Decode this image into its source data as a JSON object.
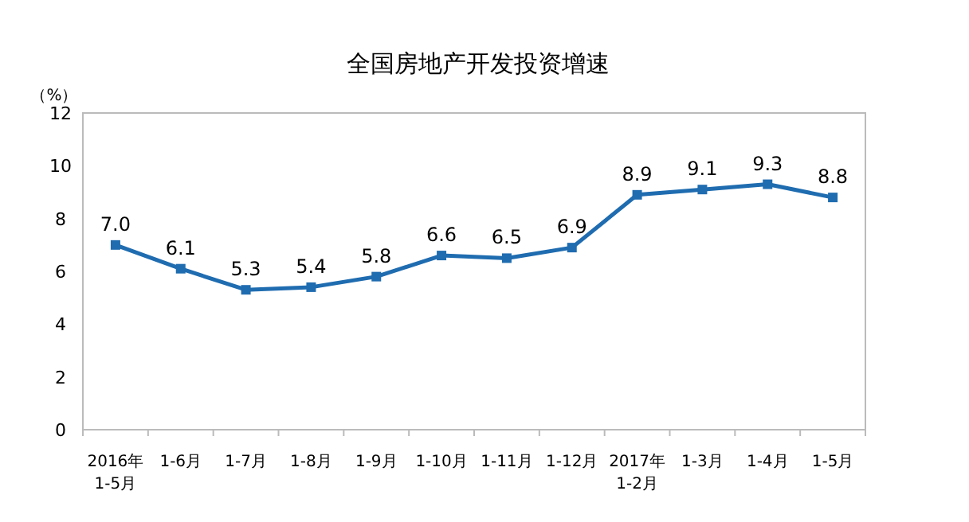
{
  "chart_data": {
    "type": "line",
    "title": "全国房地产开发投资增速",
    "ylabel": "（%）",
    "categories": [
      "2016年\n1-5月",
      "1-6月",
      "1-7月",
      "1-8月",
      "1-9月",
      "1-10月",
      "1-11月",
      "1-12月",
      "2017年\n1-2月",
      "1-3月",
      "1-4月",
      "1-5月"
    ],
    "series": [
      {
        "color": "#1f6cb0",
        "values": [
          7.0,
          6.1,
          5.3,
          5.4,
          5.8,
          6.6,
          6.5,
          6.9,
          8.9,
          9.1,
          9.3,
          8.8
        ]
      }
    ],
    "value_labels": [
      "7.0",
      "6.1",
      "5.3",
      "5.4",
      "5.8",
      "6.6",
      "6.5",
      "6.9",
      "8.9",
      "9.1",
      "9.3",
      "8.8"
    ],
    "ylim": [
      0,
      12
    ],
    "yticks": [
      0,
      2,
      4,
      6,
      8,
      10,
      12
    ],
    "marker": "square",
    "line_style": "solid"
  }
}
